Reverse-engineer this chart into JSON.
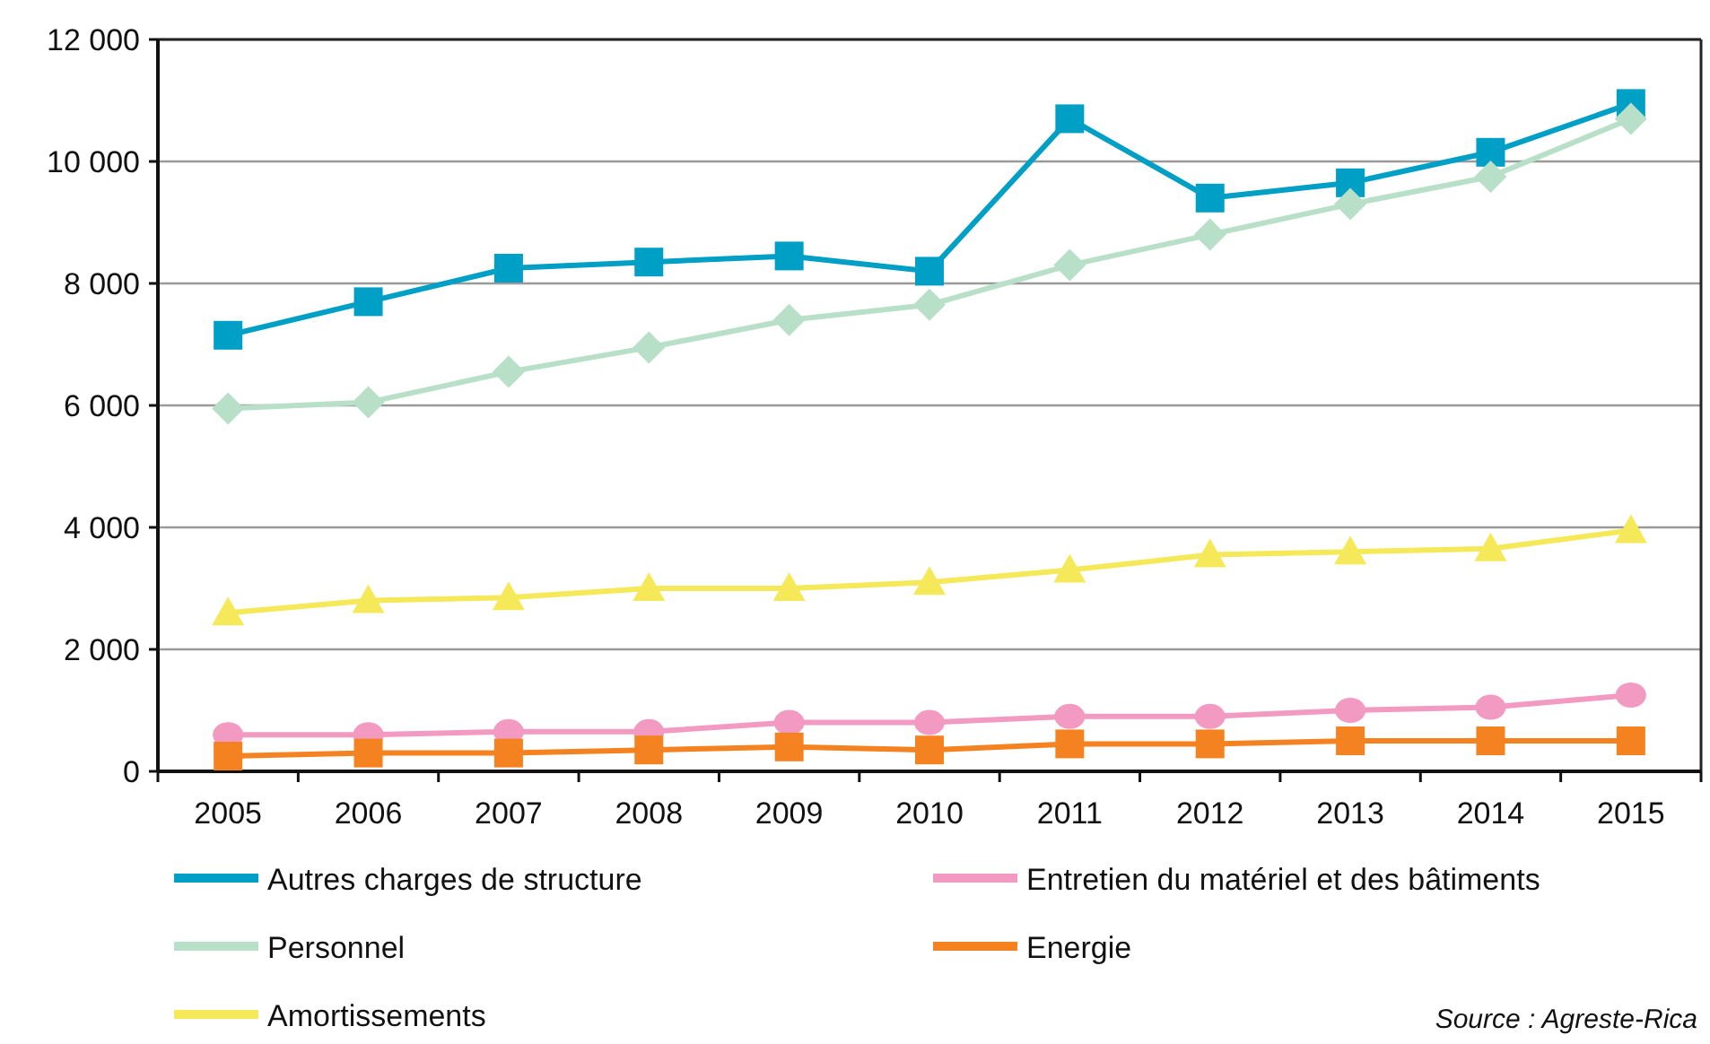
{
  "chart_data": {
    "type": "line",
    "categories": [
      "2005",
      "2006",
      "2007",
      "2008",
      "2009",
      "2010",
      "2011",
      "2012",
      "2013",
      "2014",
      "2015"
    ],
    "series": [
      {
        "name": "Autres charges de structure",
        "color": "#00a0c6",
        "marker": "square",
        "values": [
          7150,
          7700,
          8250,
          8350,
          8450,
          8200,
          10700,
          9400,
          9650,
          10150,
          10950
        ]
      },
      {
        "name": "Personnel",
        "color": "#b8e0c8",
        "marker": "diamond",
        "values": [
          5950,
          6050,
          6550,
          6950,
          7400,
          7650,
          8300,
          8800,
          9300,
          9750,
          10700
        ]
      },
      {
        "name": "Amortissements",
        "color": "#f5e95a",
        "marker": "triangle",
        "values": [
          2600,
          2800,
          2850,
          3000,
          3000,
          3100,
          3300,
          3550,
          3600,
          3650,
          3950
        ]
      },
      {
        "name": "Entretien du matériel et des bâtiments",
        "color": "#f29ac2",
        "marker": "circle",
        "values": [
          600,
          600,
          650,
          650,
          800,
          800,
          900,
          900,
          1000,
          1050,
          1250
        ]
      },
      {
        "name": "Energie",
        "color": "#f58220",
        "marker": "square",
        "values": [
          250,
          300,
          300,
          350,
          400,
          350,
          450,
          450,
          500,
          500,
          500
        ]
      }
    ],
    "ylim": [
      0,
      12000
    ],
    "yticks": [
      0,
      {
        "value": 2000,
        "label": "2 000"
      },
      {
        "value": 4000,
        "label": "4 000"
      },
      {
        "value": 6000,
        "label": "6 000"
      },
      {
        "value": 8000,
        "label": "8 000"
      },
      {
        "value": 10000,
        "label": "10 000"
      },
      {
        "value": 12000,
        "label": "12  000"
      }
    ],
    "grid": "y",
    "legend": "bottom",
    "annotations": [
      "Source : Agreste-Rica"
    ]
  }
}
